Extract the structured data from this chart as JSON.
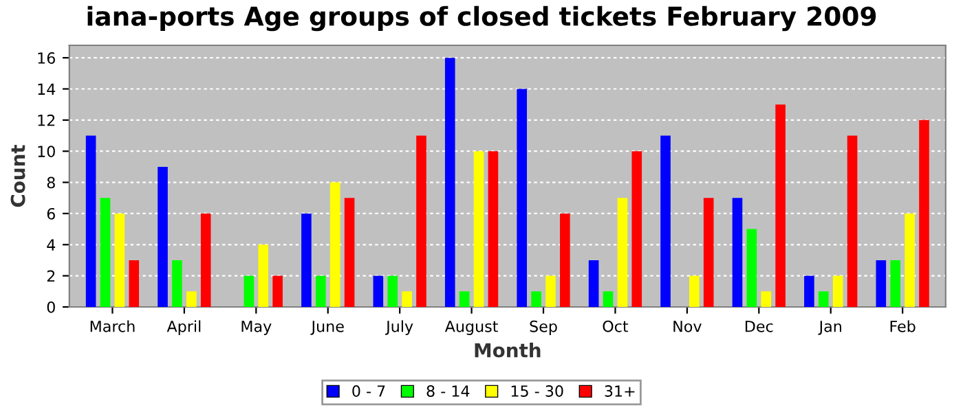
{
  "chart_data": {
    "type": "bar",
    "title": "iana-ports Age groups of closed tickets February 2009",
    "xlabel": "Month",
    "ylabel": "Count",
    "categories": [
      "March",
      "April",
      "May",
      "June",
      "July",
      "August",
      "Sep",
      "Oct",
      "Nov",
      "Dec",
      "Jan",
      "Feb"
    ],
    "series": [
      {
        "name": "0 - 7",
        "color": "#0000ff",
        "values": [
          11,
          9,
          0,
          6,
          2,
          16,
          14,
          3,
          11,
          7,
          2,
          3
        ]
      },
      {
        "name": "8 - 14",
        "color": "#00ff00",
        "values": [
          7,
          3,
          2,
          2,
          2,
          1,
          1,
          1,
          0,
          5,
          1,
          3
        ]
      },
      {
        "name": "15 - 30",
        "color": "#ffff00",
        "values": [
          6,
          1,
          4,
          8,
          1,
          10,
          2,
          7,
          2,
          1,
          2,
          6
        ]
      },
      {
        "name": "31+",
        "color": "#ff0000",
        "values": [
          3,
          6,
          2,
          7,
          11,
          10,
          6,
          10,
          7,
          13,
          11,
          12
        ]
      }
    ],
    "ylim": [
      0,
      16.8
    ],
    "yticks": [
      0,
      2,
      4,
      6,
      8,
      10,
      12,
      14,
      16
    ],
    "grid": "y",
    "legend": "bottom"
  }
}
